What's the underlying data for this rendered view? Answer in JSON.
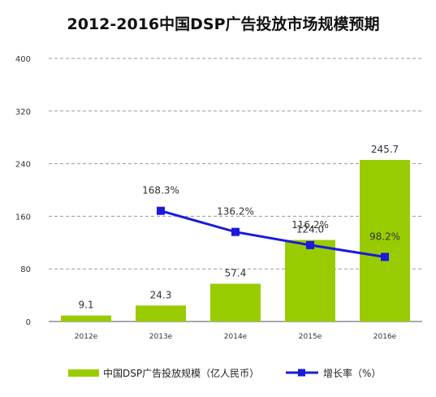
{
  "chart_data": {
    "type": "bar",
    "title": "2012-2016中国DSP广告投放市场规模预期",
    "categories": [
      "2012e",
      "2013e",
      "2014e",
      "2015e",
      "2016e"
    ],
    "ylim": [
      0,
      400
    ],
    "yticks": [
      "0",
      "80",
      "160",
      "240",
      "320",
      "400"
    ],
    "grid": true,
    "legend_position": "bottom",
    "series": [
      {
        "name": "中国DSP广告投放规模（亿人民币）",
        "type": "bar",
        "values": [
          9.1,
          24.3,
          57.4,
          124.0,
          245.7
        ],
        "labels": [
          "9.1",
          "24.3",
          "57.4",
          "124.0",
          "245.7"
        ],
        "color": "#99cc00"
      },
      {
        "name": "增长率（%）",
        "type": "line",
        "x": [
          "2013e",
          "2014e",
          "2015e",
          "2016e"
        ],
        "values": [
          168.3,
          136.2,
          116.2,
          98.2
        ],
        "labels": [
          "168.3%",
          "136.2%",
          "116.2%",
          "98.2%"
        ],
        "color": "#1a1adb"
      }
    ]
  }
}
